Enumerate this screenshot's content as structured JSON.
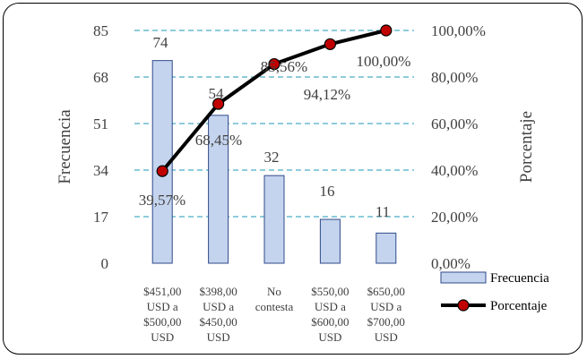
{
  "chart_data": {
    "type": "bar",
    "categories": [
      [
        "$451,00",
        "USD a",
        "$500,00",
        "USD"
      ],
      [
        "$398,00",
        "USD a",
        "$450,00",
        "USD"
      ],
      [
        "No",
        "contesta"
      ],
      [
        "$550,00",
        "USD a",
        "$600,00",
        "USD"
      ],
      [
        "$650,00",
        "USD a",
        "$700,00",
        "USD"
      ]
    ],
    "series": [
      {
        "name": "Frecuencia",
        "type": "bar",
        "values": [
          74,
          54,
          32,
          16,
          11
        ],
        "labels": [
          "74",
          "54",
          "32",
          "16",
          "11"
        ]
      },
      {
        "name": "Porcentaje",
        "type": "line",
        "values": [
          39.57,
          68.45,
          85.56,
          94.12,
          100.0
        ],
        "labels": [
          "39,57%",
          "68,45%",
          "85,56%",
          "94,12%",
          "100,00%"
        ]
      }
    ],
    "ylabel": "Frecuencia",
    "y2label": "Porcentaje",
    "ylim": [
      0,
      85
    ],
    "yticks": [
      "0",
      "17",
      "34",
      "51",
      "68",
      "85"
    ],
    "y2lim": [
      0,
      100
    ],
    "y2ticks": [
      "0,00%",
      "20,00%",
      "40,00%",
      "60,00%",
      "80,00%",
      "100,00%"
    ],
    "grid": "dashed horizontal",
    "legend_position": "right",
    "colors": {
      "bar_fill": "#c5d4ee",
      "bar_stroke": "#2e4a8a",
      "line": "#000000",
      "marker": "#c00000",
      "grid": "#4bacc6"
    }
  }
}
